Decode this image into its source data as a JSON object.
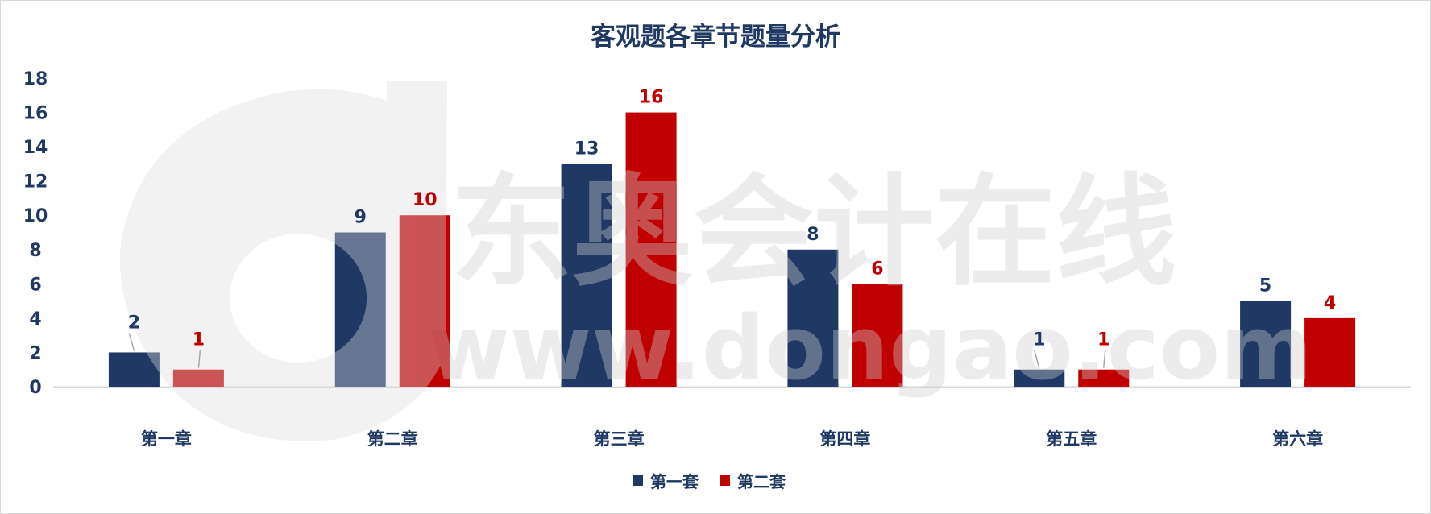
{
  "chart_data": {
    "type": "bar",
    "title": "客观题各章节题量分析",
    "categories": [
      "第一章",
      "第二章",
      "第三章",
      "第四章",
      "第五章",
      "第六章"
    ],
    "series": [
      {
        "name": "第一套",
        "color": "#1F3864",
        "values": [
          2,
          9,
          13,
          8,
          1,
          5
        ]
      },
      {
        "name": "第二套",
        "color": "#C00000",
        "values": [
          1,
          10,
          16,
          6,
          1,
          4
        ]
      }
    ],
    "ylim": [
      0,
      18
    ],
    "yticks": [
      0,
      2,
      4,
      6,
      8,
      10,
      12,
      14,
      16,
      18
    ],
    "xlabel": "",
    "ylabel": "",
    "grid": false,
    "data_labels": true,
    "legend_position": "bottom"
  },
  "watermark": {
    "line1": "东奥会计在线",
    "line2": "www.dongao.com"
  }
}
